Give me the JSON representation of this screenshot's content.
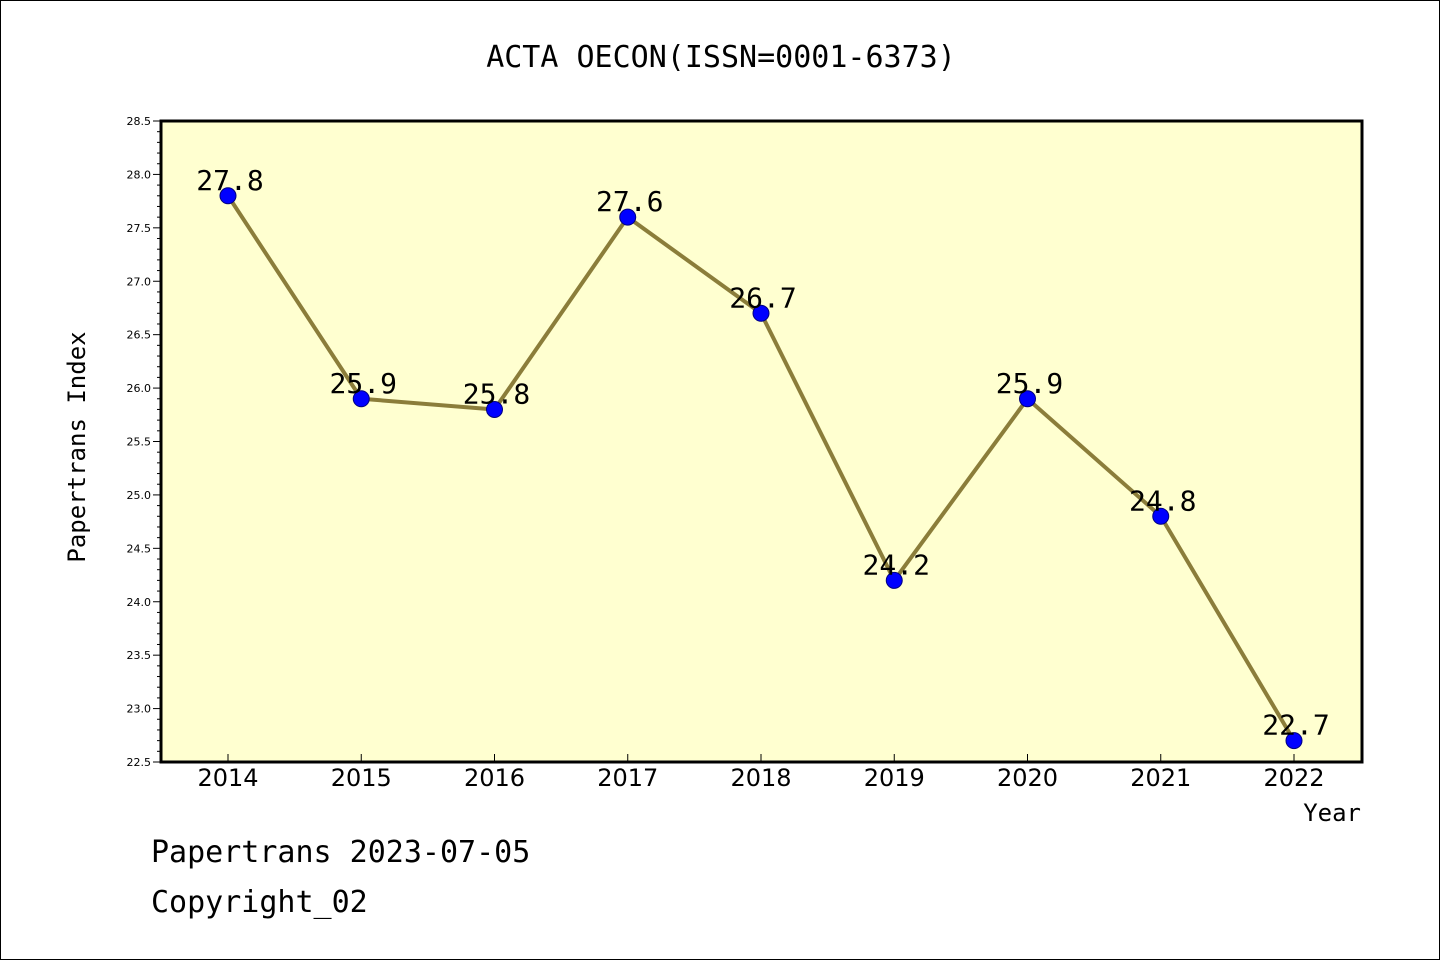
{
  "chart_data": {
    "type": "line",
    "title": "ACTA OECON(ISSN=0001-6373)",
    "xlabel": "Year",
    "ylabel": "Papertrans Index",
    "categories": [
      "2014",
      "2015",
      "2016",
      "2017",
      "2018",
      "2019",
      "2020",
      "2021",
      "2022"
    ],
    "series": [
      {
        "values": [
          27.8,
          25.9,
          25.8,
          27.6,
          26.7,
          24.2,
          25.9,
          24.8,
          22.7
        ],
        "data_labels": [
          "27.8",
          "25.9",
          "25.8",
          "27.6",
          "26.7",
          "24.2",
          "25.9",
          "24.8",
          "22.7"
        ]
      }
    ],
    "ylim": [
      22.5,
      28.5
    ],
    "yticks": [
      "22.5",
      "23.0",
      "23.5",
      "24.0",
      "24.5",
      "25.0",
      "25.5",
      "26.0",
      "26.5",
      "27.0",
      "27.5",
      "28.0",
      "28.5"
    ],
    "grid": false,
    "legend": false,
    "colors": {
      "plot_background": "#ffffd0",
      "line": "#8b7d3a",
      "marker": "#0000ff",
      "axes": "#000000"
    }
  },
  "footer": {
    "line1": "Papertrans 2023-07-05",
    "line2": "Copyright_02"
  }
}
